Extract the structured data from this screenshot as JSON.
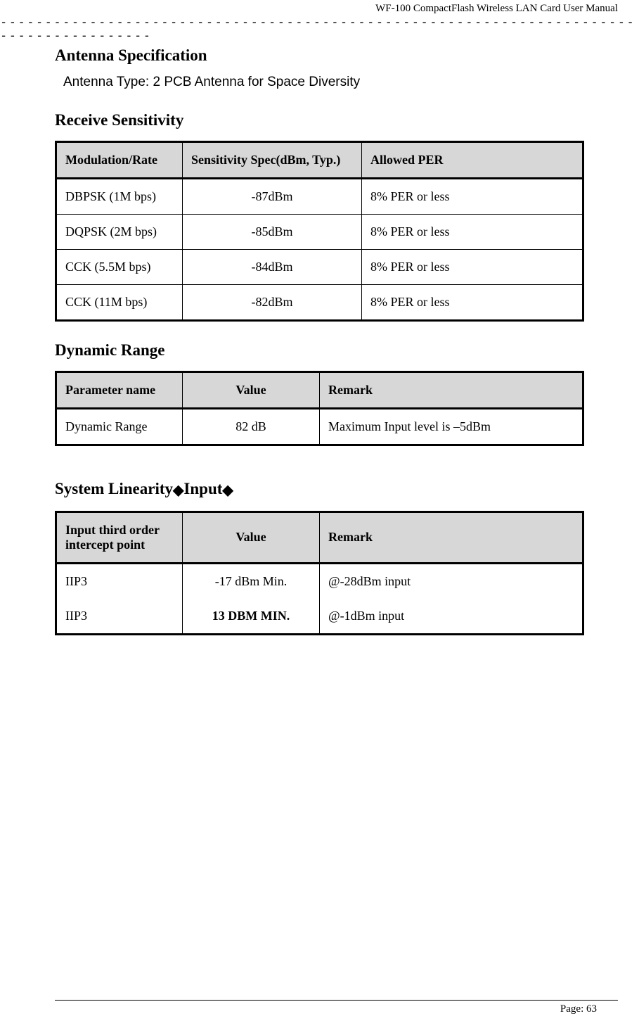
{
  "header": {
    "doc_title": "WF-100 CompactFlash Wireless LAN Card User Manual",
    "dashes_line1": "-----------------------------------------------------------------------",
    "dashes_line2": "-----------------"
  },
  "sections": {
    "antenna_spec": {
      "heading": "Antenna Specification",
      "type_text": "Antenna Type: 2 PCB Antenna for Space Diversity"
    },
    "receive_sensitivity": {
      "heading": "Receive Sensitivity",
      "table": {
        "headers": [
          "Modulation/Rate",
          "Sensitivity Spec(dBm, Typ.)",
          "Allowed PER"
        ],
        "rows": [
          [
            "DBPSK (1M bps)",
            "-87dBm",
            "8% PER or less"
          ],
          [
            "DQPSK (2M bps)",
            "-85dBm",
            "8% PER or less"
          ],
          [
            "CCK (5.5M bps)",
            "-84dBm",
            "8% PER or less"
          ],
          [
            "CCK (11M bps)",
            "-82dBm",
            "8% PER or less"
          ]
        ]
      }
    },
    "dynamic_range": {
      "heading": "Dynamic Range",
      "table": {
        "headers": [
          "Parameter name",
          "Value",
          "Remark"
        ],
        "rows": [
          [
            "Dynamic Range",
            "82 dB",
            "Maximum Input level is –5dBm"
          ]
        ]
      }
    },
    "system_linearity": {
      "heading_prefix": "System Linearity",
      "diamond1": "◆",
      "heading_mid": "Input",
      "diamond2": "◆",
      "table": {
        "headers": [
          "Input third order intercept point",
          "Value",
          "Remark"
        ],
        "rows": [
          [
            "IIP3",
            "-17 dBm Min.",
            "@-28dBm input"
          ],
          [
            "IIP3",
            "13 DBM MIN.",
            "@-1dBm input"
          ]
        ]
      }
    }
  },
  "footer": {
    "page": "Page: 63"
  }
}
